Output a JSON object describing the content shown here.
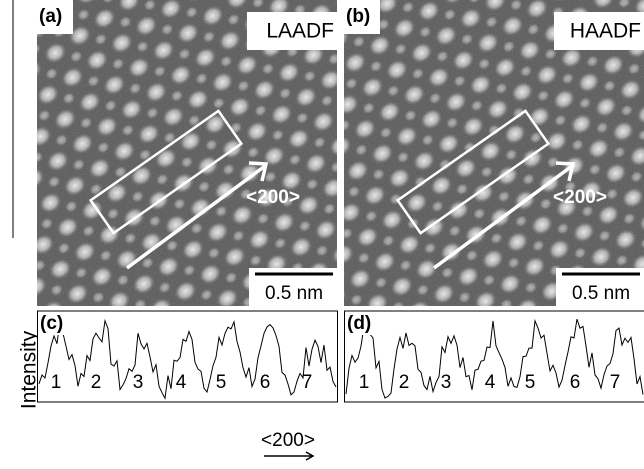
{
  "panels": [
    {
      "label": "(a)",
      "mode": "LAADF",
      "direction": "<200>",
      "scale_bar": "0.5 nm"
    },
    {
      "label": "(b)",
      "mode": "HAADF",
      "direction": "<200>",
      "scale_bar": "0.5 nm"
    }
  ],
  "profiles": [
    {
      "label": "(c)",
      "peaks": [
        1,
        2,
        3,
        4,
        5,
        6,
        7
      ]
    },
    {
      "label": "(d)",
      "peaks": [
        1,
        2,
        3,
        4,
        5,
        6,
        7
      ]
    }
  ],
  "y_axis_label": "Intensity",
  "x_axis_label": "<200>"
}
